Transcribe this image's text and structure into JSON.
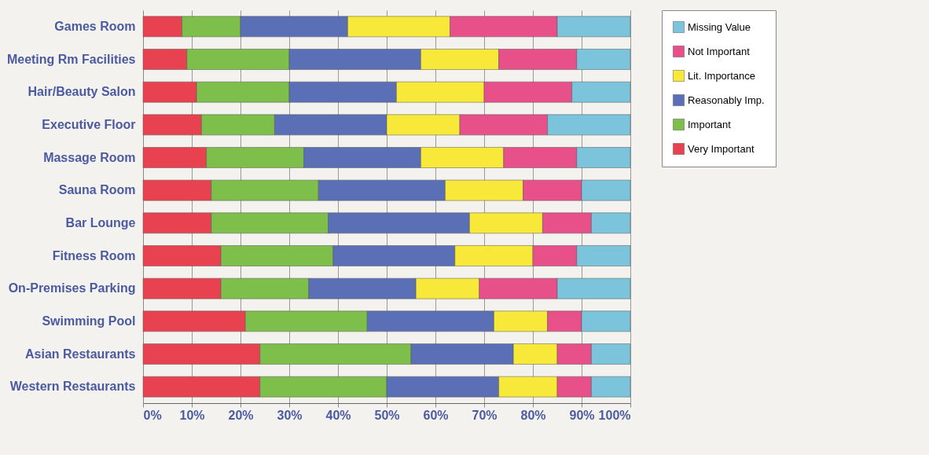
{
  "chart_data": {
    "type": "bar",
    "orientation": "horizontal",
    "stacked": true,
    "categories": [
      "Games Room",
      "Meeting Rm Facilities",
      "Hair/Beauty Salon",
      "Executive Floor",
      "Massage Room",
      "Sauna Room",
      "Bar Lounge",
      "Fitness Room",
      "On-Premises Parking",
      "Swimming Pool",
      "Asian Restaurants",
      "Western Restaurants"
    ],
    "series": [
      {
        "name": "Very Important",
        "color": "#e8414f",
        "values": [
          8,
          9,
          11,
          12,
          13,
          14,
          14,
          16,
          16,
          21,
          24,
          24
        ]
      },
      {
        "name": "Important",
        "color": "#7dbf4a",
        "values": [
          12,
          21,
          19,
          15,
          20,
          22,
          24,
          23,
          18,
          25,
          31,
          26
        ]
      },
      {
        "name": "Reasonably Imp.",
        "color": "#5a6fb5",
        "values": [
          22,
          27,
          22,
          23,
          24,
          26,
          29,
          25,
          22,
          26,
          21,
          23
        ]
      },
      {
        "name": "Lit. Importance",
        "color": "#f7e83a",
        "values": [
          21,
          16,
          18,
          15,
          17,
          16,
          15,
          16,
          13,
          11,
          9,
          12
        ]
      },
      {
        "name": "Not Important",
        "color": "#e8508a",
        "values": [
          22,
          16,
          18,
          18,
          15,
          12,
          10,
          9,
          16,
          7,
          7,
          7
        ]
      },
      {
        "name": "Missing Value",
        "color": "#7cc3dc",
        "values": [
          15,
          11,
          12,
          17,
          11,
          10,
          8,
          11,
          15,
          10,
          8,
          8
        ]
      }
    ],
    "xlim": [
      0,
      100
    ],
    "xticks": [
      {
        "value": 0,
        "label": "0%"
      },
      {
        "value": 10,
        "label": "10%"
      },
      {
        "value": 20,
        "label": "20%"
      },
      {
        "value": 30,
        "label": "30%"
      },
      {
        "value": 40,
        "label": "40%"
      },
      {
        "value": 50,
        "label": "50%"
      },
      {
        "value": 60,
        "label": "60%"
      },
      {
        "value": 70,
        "label": "70%"
      },
      {
        "value": 80,
        "label": "80%"
      },
      {
        "value": 90,
        "label": "90%"
      },
      {
        "value": 100,
        "label": "100%"
      }
    ],
    "grid": "x",
    "legend": "right"
  }
}
